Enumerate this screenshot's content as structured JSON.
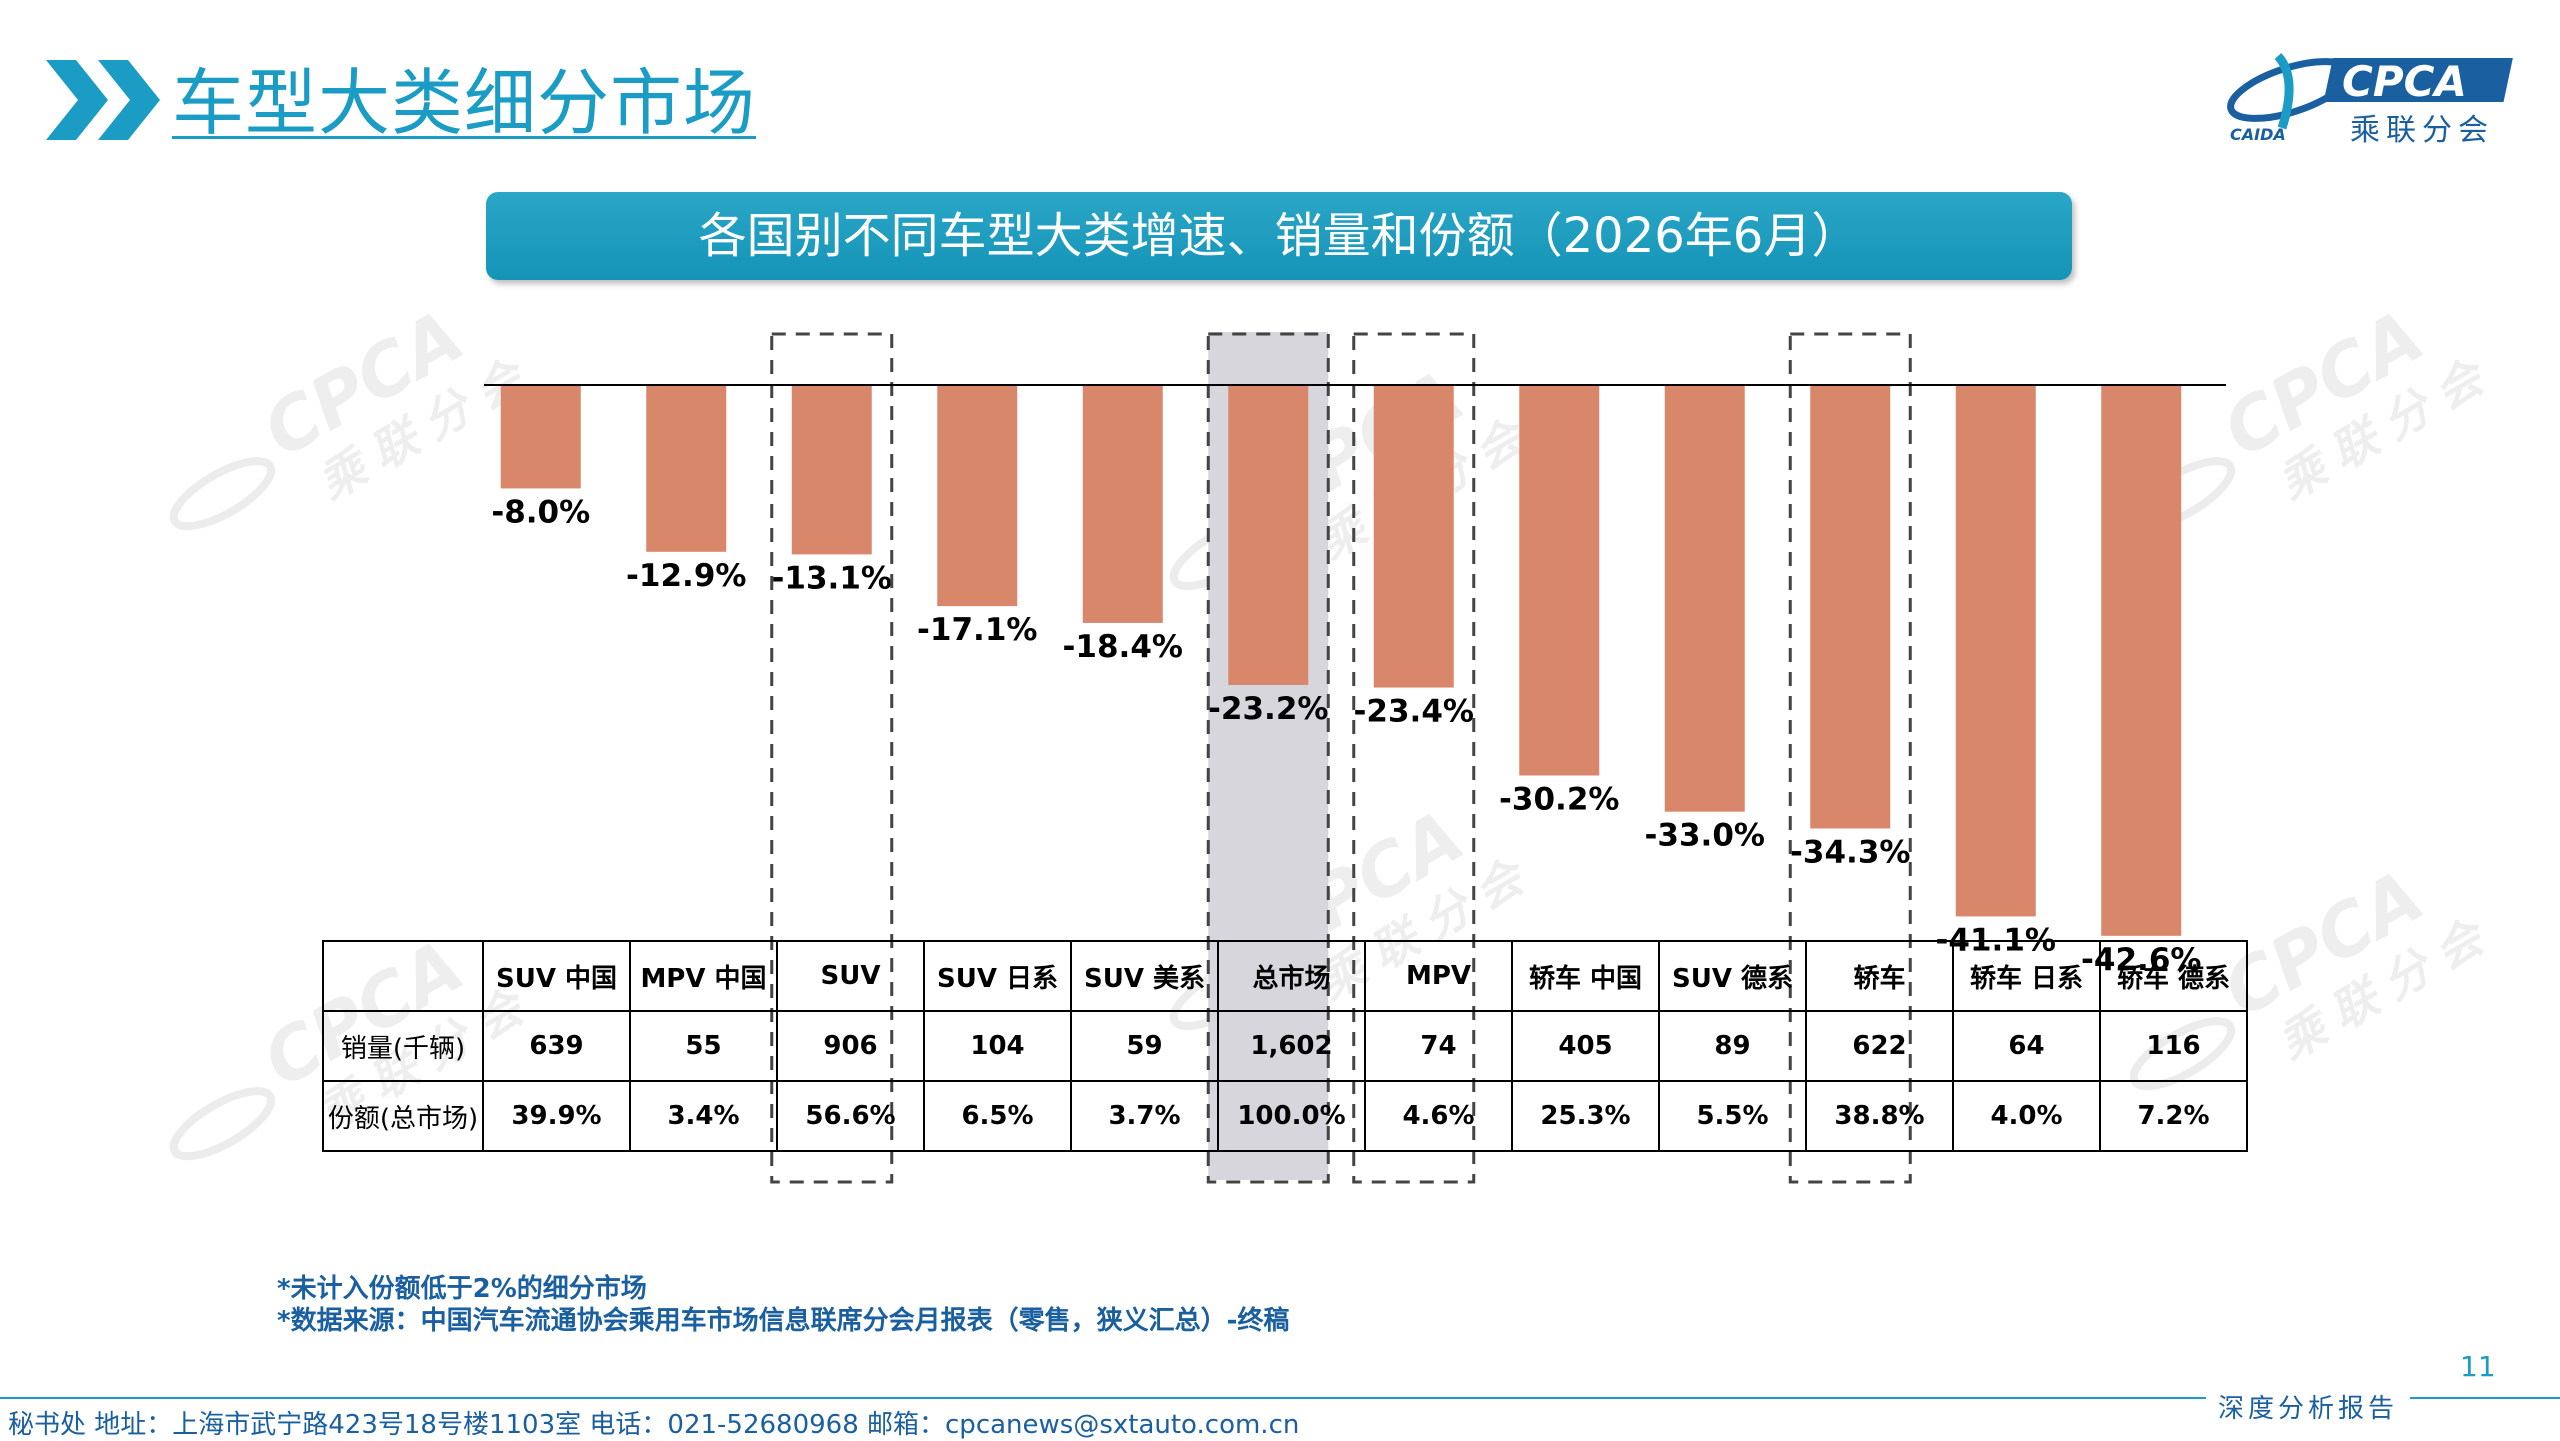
{
  "header": {
    "title": "车型大类细分市场",
    "logo_text": "CPCA",
    "logo_subtext": "乘联分会",
    "logo_mark_text": "CAIDA"
  },
  "banner": {
    "text": "各国别不同车型大类增速、销量和份额（2026年6月）"
  },
  "chart_data": {
    "type": "bar",
    "categories": [
      "SUV 中国",
      "MPV 中国",
      "SUV",
      "SUV 日系",
      "SUV 美系",
      "总市场",
      "MPV",
      "轿车 中国",
      "SUV 德系",
      "轿车",
      "轿车 日系",
      "轿车 德系"
    ],
    "values": [
      -8.0,
      -12.9,
      -13.1,
      -17.1,
      -18.4,
      -23.2,
      -23.4,
      -30.2,
      -33.0,
      -34.3,
      -41.1,
      -42.6
    ],
    "value_labels": [
      "-8.0%",
      "-12.9%",
      "-13.1%",
      "-17.1%",
      "-18.4%",
      "-23.2%",
      "-23.4%",
      "-30.2%",
      "-33.0%",
      "-34.3%",
      "-41.1%",
      "-42.6%"
    ],
    "unit": "%",
    "ylim": [
      -45,
      0
    ],
    "bar_color": "#d9876b",
    "highlight_color": "#d6d6dc",
    "highlighted_index": 5,
    "dashed_indices": [
      2,
      5,
      6,
      9
    ]
  },
  "table": {
    "headers": [
      "",
      "SUV 中国",
      "MPV 中国",
      "SUV",
      "SUV 日系",
      "SUV 美系",
      "总市场",
      "MPV",
      "轿车 中国",
      "SUV 德系",
      "轿车",
      "轿车 日系",
      "轿车 德系"
    ],
    "rows": [
      {
        "label": "销量(千辆)",
        "values": [
          "639",
          "55",
          "906",
          "104",
          "59",
          "1,602",
          "74",
          "405",
          "89",
          "622",
          "64",
          "116"
        ]
      },
      {
        "label": "份额(总市场)",
        "values": [
          "39.9%",
          "3.4%",
          "56.6%",
          "6.5%",
          "3.7%",
          "100.0%",
          "4.6%",
          "25.3%",
          "5.5%",
          "38.8%",
          "4.0%",
          "7.2%"
        ]
      }
    ]
  },
  "notes": {
    "note1": "*未计入份额低于2%的细分市场",
    "note2": "*数据来源：中国汽车流通协会乘用车市场信息联席分会月报表（零售，狭义汇总）-终稿"
  },
  "footer": {
    "contact": "秘书处  地址：上海市武宁路423号18号楼1103室  电话：021-52680968  邮箱：cpcanews@sxtauto.com.cn",
    "page_number": "11",
    "report_label": "深度分析报告"
  },
  "colors": {
    "accent": "#1a9cc4",
    "note_blue": "#1a5fa0",
    "bar": "#d9876b"
  }
}
